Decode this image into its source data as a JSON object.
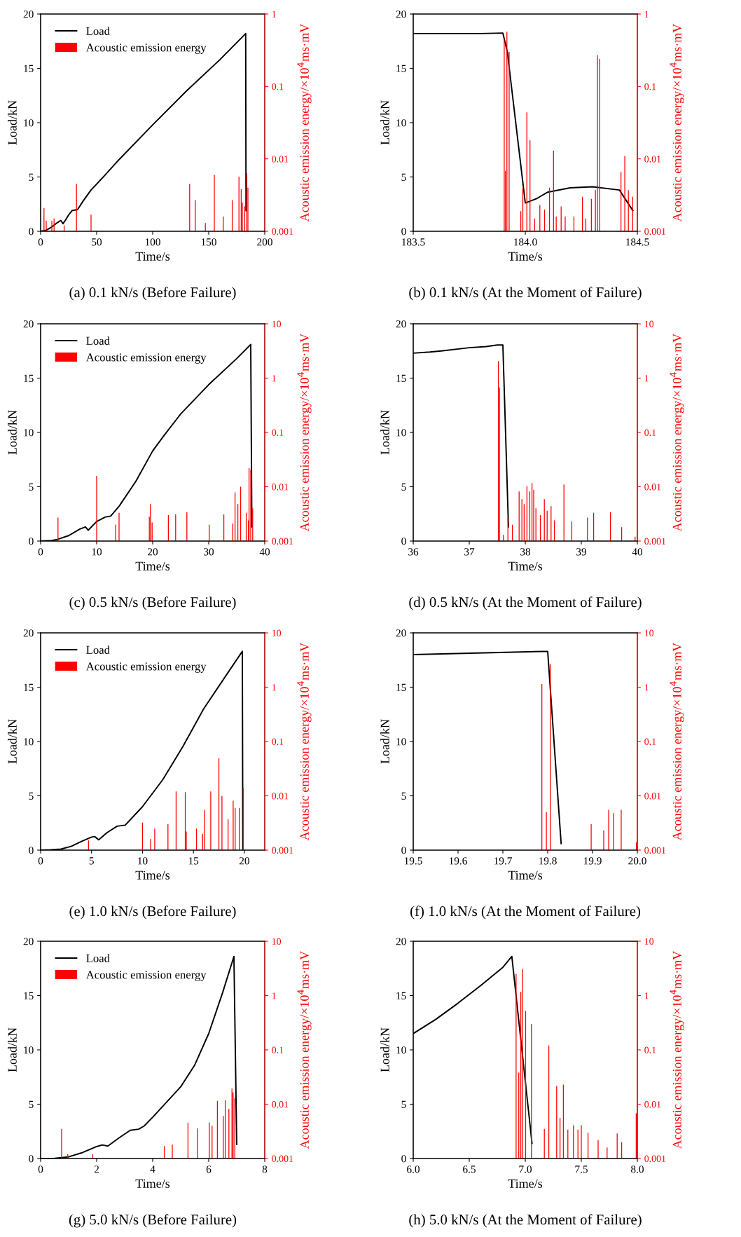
{
  "chart_data": [
    {
      "type": "line",
      "title": "(a) 0.1 kN/s (Before Failure)",
      "xlabel": "Time/s",
      "ylabel": "Load/kN",
      "y2label": "Acoustic emission energy/×10$^{4}$ms·mV",
      "legend": "top left",
      "log": "y2",
      "xlim": [
        0,
        200
      ],
      "xticks": [
        0,
        50,
        100,
        150,
        200
      ],
      "ylim": [
        0,
        20
      ],
      "yticks": [
        0,
        5,
        10,
        15,
        20
      ],
      "y2lim": [
        0.001,
        1
      ],
      "y2ticks": [
        0.001,
        0.01,
        0.1,
        1
      ],
      "series": [
        {
          "name": "Load",
          "color": "#000000",
          "x": [
            0,
            5,
            10,
            15,
            18,
            20,
            22,
            25,
            28,
            33,
            38,
            45,
            55,
            70,
            100,
            130,
            160,
            183,
            183.3
          ],
          "values": [
            0,
            0.1,
            0.4,
            0.8,
            1.0,
            0.7,
            1.0,
            1.5,
            1.9,
            2.0,
            2.8,
            3.8,
            4.9,
            6.6,
            9.8,
            12.9,
            15.8,
            18.2,
            1.9
          ]
        },
        {
          "name": "Acoustic emission energy",
          "type": "bar",
          "axis": "y2",
          "color": "#ff0000",
          "x": [
            3,
            5,
            10,
            12,
            21,
            32,
            45,
            133,
            138,
            147,
            155,
            163,
            171,
            177,
            179,
            180,
            182,
            184,
            185
          ],
          "values": [
            0.0021,
            0.0014,
            0.0014,
            0.0015,
            0.0012,
            0.0045,
            0.0017,
            0.0045,
            0.0027,
            0.0013,
            0.006,
            0.0016,
            0.0027,
            0.0057,
            0.0038,
            0.0025,
            0.0022,
            0.0063,
            0.004
          ]
        }
      ]
    },
    {
      "type": "line",
      "title": "(b) 0.1 kN/s (At the Moment of Failure)",
      "xlabel": "Time/s",
      "ylabel": "Load/kN",
      "y2label": "Acoustic emission energy/×10$^{4}$ms·mV",
      "log": "y2",
      "xlim": [
        183.5,
        184.5
      ],
      "xticks": [
        183.5,
        {
          "value": 184,
          "label": "184.0"
        },
        184.5
      ],
      "ylim": [
        0,
        20
      ],
      "yticks": [
        0,
        5,
        10,
        15,
        20
      ],
      "y2lim": [
        0.001,
        1
      ],
      "y2ticks": [
        0.001,
        0.01,
        0.1,
        1
      ],
      "series": [
        {
          "color": "#000000",
          "x": [
            183.5,
            183.8,
            183.9,
            183.92,
            184.0,
            184.05,
            184.1,
            184.2,
            184.3,
            184.42,
            184.48
          ],
          "values": [
            18.2,
            18.2,
            18.25,
            16.5,
            2.6,
            3.0,
            3.6,
            4.0,
            4.1,
            3.8,
            1.9
          ]
        },
        {
          "type": "bar",
          "axis": "y2",
          "color": "#ff0000",
          "x": [
            183.906,
            183.911,
            183.918,
            183.928,
            183.98,
            183.989,
            184.007,
            184.021,
            184.042,
            184.065,
            184.086,
            184.108,
            184.126,
            184.138,
            184.16,
            184.178,
            184.217,
            184.255,
            184.27,
            184.295,
            184.313,
            184.322,
            184.332,
            184.427,
            184.444,
            184.46,
            184.479
          ],
          "values": [
            0.43,
            0.0068,
            0.57,
            0.3,
            0.0019,
            0.004,
            0.044,
            0.018,
            0.0015,
            0.0023,
            0.002,
            0.004,
            0.013,
            0.0016,
            0.0022,
            0.0016,
            0.0016,
            0.003,
            0.0015,
            0.0028,
            0.0037,
            0.27,
            0.24,
            0.0066,
            0.011,
            0.0037,
            0.003
          ]
        }
      ]
    },
    {
      "type": "line",
      "title": "(c) 0.5 kN/s (Before Failure)",
      "xlabel": "Time/s",
      "ylabel": "Load/kN",
      "y2label": "Acoustic emission energy/×10$^{4}$ms·mV",
      "legend": "top left",
      "log": "y2",
      "xlim": [
        0,
        40
      ],
      "xticks": [
        0,
        10,
        20,
        30,
        40
      ],
      "ylim": [
        0,
        20
      ],
      "yticks": [
        0,
        5,
        10,
        15,
        20
      ],
      "y2lim": [
        0.001,
        10
      ],
      "y2ticks": [
        0.001,
        0.01,
        0.1,
        1,
        10
      ],
      "series": [
        {
          "name": "Load",
          "color": "#000000",
          "x": [
            0,
            2,
            3,
            5,
            7,
            8,
            8.5,
            10,
            11.5,
            12.5,
            14,
            17,
            20,
            22,
            25,
            30,
            35,
            37.5,
            37.7
          ],
          "values": [
            0,
            0.05,
            0.15,
            0.5,
            1.1,
            1.3,
            1.0,
            1.8,
            2.2,
            2.3,
            3.2,
            5.5,
            8.3,
            9.7,
            11.7,
            14.4,
            16.8,
            18.1,
            1.3
          ]
        },
        {
          "name": "Acoustic emission energy",
          "type": "bar",
          "axis": "y2",
          "color": "#ff0000",
          "x": [
            3.1,
            10.0,
            13.4,
            14.0,
            19.4,
            19.6,
            19.9,
            22.8,
            24.1,
            26.1,
            30.1,
            32.7,
            34.3,
            34.7,
            35.2,
            35.7,
            36.7,
            37.1,
            37.2,
            37.5,
            37.85
          ],
          "values": [
            0.0027,
            0.0158,
            0.002,
            0.0033,
            0.0028,
            0.0048,
            0.0022,
            0.003,
            0.0031,
            0.0034,
            0.002,
            0.0031,
            0.0021,
            0.0079,
            0.0048,
            0.01,
            0.0033,
            0.0024,
            0.022,
            0.0205,
            0.004
          ]
        }
      ]
    },
    {
      "type": "line",
      "title": "(d) 0.5 kN/s (At the Moment of Failure)",
      "xlabel": "Time/s",
      "ylabel": "Load/kN",
      "y2label": "Acoustic emission energy/×10$^{4}$ms·mV",
      "log": "y2",
      "xlim": [
        36,
        40
      ],
      "xticks": [
        36,
        37,
        38,
        39,
        40
      ],
      "ylim": [
        0,
        20
      ],
      "yticks": [
        0,
        5,
        10,
        15,
        20
      ],
      "y2lim": [
        0.001,
        10
      ],
      "y2ticks": [
        0.001,
        0.01,
        0.1,
        1,
        10
      ],
      "series": [
        {
          "color": "#000000",
          "x": [
            36,
            36.3,
            36.5,
            37,
            37.3,
            37.5,
            37.6,
            37.7
          ],
          "values": [
            17.3,
            17.4,
            17.5,
            17.8,
            17.9,
            18.05,
            18.05,
            1.3
          ]
        },
        {
          "type": "bar",
          "axis": "y2",
          "color": "#ff0000",
          "x": [
            37.52,
            37.54,
            37.61,
            37.69,
            37.77,
            37.89,
            37.94,
            37.98,
            38.03,
            38.08,
            38.12,
            38.15,
            38.19,
            38.27,
            38.34,
            38.39,
            38.46,
            38.52,
            38.69,
            38.83,
            39.11,
            39.22,
            39.52,
            39.72,
            39.96
          ],
          "values": [
            2.06,
            0.67,
            0.0013,
            0.0026,
            0.002,
            0.0082,
            0.0059,
            0.0048,
            0.0102,
            0.0082,
            0.0118,
            0.0088,
            0.004,
            0.003,
            0.0059,
            0.0036,
            0.0044,
            0.0024,
            0.011,
            0.0023,
            0.0027,
            0.0033,
            0.0034,
            0.0018,
            0.0012
          ]
        }
      ]
    },
    {
      "type": "line",
      "title": "(e) 1.0 kN/s (Before Failure)",
      "xlabel": "Time/s",
      "ylabel": "Load/kN",
      "y2label": "Acoustic emission energy/×10$^{4}$ms·mV",
      "legend": "top left",
      "log": "y2",
      "xlim": [
        0,
        22
      ],
      "xticks": [
        0,
        5,
        10,
        15,
        20
      ],
      "ylim": [
        0,
        20
      ],
      "yticks": [
        0,
        5,
        10,
        15,
        20
      ],
      "y2lim": [
        0.001,
        10
      ],
      "y2ticks": [
        0.001,
        0.01,
        0.1,
        1,
        10
      ],
      "series": [
        {
          "name": "Load",
          "color": "#000000",
          "x": [
            0,
            1,
            2,
            3,
            4,
            5,
            5.3,
            5.7,
            6.5,
            7.5,
            8.3,
            9,
            10,
            12,
            14,
            16,
            18,
            19.8,
            19.85
          ],
          "values": [
            0,
            0.03,
            0.1,
            0.35,
            0.8,
            1.2,
            1.25,
            0.95,
            1.6,
            2.2,
            2.3,
            3.0,
            4.0,
            6.5,
            9.6,
            13.0,
            15.8,
            18.3,
            0.1
          ]
        },
        {
          "name": "Acoustic emission energy",
          "type": "bar",
          "axis": "y2",
          "color": "#ff0000",
          "x": [
            4.7,
            10.0,
            10.8,
            11.2,
            12.5,
            13.3,
            14.2,
            14.3,
            15.3,
            15.9,
            16.1,
            16.7,
            17.5,
            17.8,
            18.4,
            18.9,
            19.1,
            19.5,
            19.9
          ],
          "values": [
            0.0015,
            0.0032,
            0.0016,
            0.0025,
            0.003,
            0.012,
            0.0117,
            0.0022,
            0.0025,
            0.002,
            0.0055,
            0.012,
            0.049,
            0.0099,
            0.0037,
            0.0081,
            0.006,
            0.006,
            0.014
          ]
        }
      ]
    },
    {
      "type": "line",
      "title": "(f) 1.0 kN/s (At the Moment of Failure)",
      "xlabel": "Time/s",
      "ylabel": "Load/kN",
      "y2label": "Acoustic emission energy/×10$^{4}$ms·mV",
      "log": "y2",
      "xlim": [
        19.5,
        20.0
      ],
      "xticks": [
        19.5,
        19.6,
        19.7,
        19.8,
        19.9,
        {
          "value": 20,
          "label": "20.0"
        }
      ],
      "ylim": [
        0,
        20
      ],
      "yticks": [
        0,
        5,
        10,
        15,
        20
      ],
      "y2lim": [
        0.001,
        10
      ],
      "y2ticks": [
        0.001,
        0.01,
        0.1,
        1,
        10
      ],
      "series": [
        {
          "color": "#000000",
          "x": [
            19.5,
            19.8,
            19.83
          ],
          "values": [
            18.0,
            18.3,
            0.6
          ]
        },
        {
          "type": "bar",
          "axis": "y2",
          "color": "#ff0000",
          "x": [
            19.787,
            19.797,
            19.806,
            19.897,
            19.925,
            19.936,
            19.947,
            19.964,
            19.998
          ],
          "values": [
            1.14,
            0.005,
            2.65,
            0.003,
            0.0023,
            0.0055,
            0.0048,
            0.0055,
            0.0014
          ]
        }
      ]
    },
    {
      "type": "line",
      "title": "(g) 5.0 kN/s (Before Failure)",
      "xlabel": "Time/s",
      "ylabel": "Load/kN",
      "y2label": "Acoustic emission energy/×10$^{4}$ms·mV",
      "legend": "top left",
      "log": "y2",
      "xlim": [
        0,
        8
      ],
      "xticks": [
        0,
        2,
        4,
        6,
        8
      ],
      "ylim": [
        0,
        20
      ],
      "yticks": [
        0,
        5,
        10,
        15,
        20
      ],
      "y2lim": [
        0.001,
        10
      ],
      "y2ticks": [
        0.001,
        0.01,
        0.1,
        1,
        10
      ],
      "series": [
        {
          "name": "Load",
          "color": "#000000",
          "x": [
            0,
            0.5,
            1,
            1.5,
            2,
            2.2,
            2.4,
            2.8,
            3.2,
            3.5,
            3.7,
            4,
            4.5,
            5,
            5.5,
            6,
            6.5,
            6.9,
            7
          ],
          "values": [
            0,
            0.02,
            0.15,
            0.55,
            1.1,
            1.25,
            1.15,
            1.9,
            2.6,
            2.7,
            3.0,
            3.8,
            5.2,
            6.6,
            8.6,
            11.5,
            15.3,
            18.6,
            1.3
          ]
        },
        {
          "name": "Acoustic emission energy",
          "type": "bar",
          "axis": "y2",
          "color": "#ff0000",
          "x": [
            0.75,
            0.97,
            1.86,
            4.42,
            4.7,
            5.26,
            5.6,
            6.02,
            6.12,
            6.31,
            6.52,
            6.59,
            6.72,
            6.83,
            6.87,
            6.93
          ],
          "values": [
            0.0035,
            0.0012,
            0.0012,
            0.0017,
            0.0018,
            0.0046,
            0.0036,
            0.0046,
            0.004,
            0.0115,
            0.0061,
            0.0118,
            0.0082,
            0.0193,
            0.0165,
            0.0128
          ]
        }
      ]
    },
    {
      "type": "line",
      "title": "(h) 5.0 kN/s (At the Moment of Failure)",
      "xlabel": "Time/s",
      "ylabel": "Load/kN",
      "y2label": "Acoustic emission energy/×10$^{4}$ms·mV",
      "log": "y2",
      "xlim": [
        6,
        8
      ],
      "xticks": [
        {
          "value": 6,
          "label": "6.0"
        },
        6.5,
        {
          "value": 7,
          "label": "7.0"
        },
        7.5,
        {
          "value": 8,
          "label": "8.0"
        }
      ],
      "ylim": [
        0,
        20
      ],
      "yticks": [
        0,
        5,
        10,
        15,
        20
      ],
      "y2lim": [
        0.001,
        10
      ],
      "y2ticks": [
        0.001,
        0.01,
        0.1,
        1,
        10
      ],
      "series": [
        {
          "color": "#000000",
          "x": [
            6,
            6.2,
            6.4,
            6.6,
            6.8,
            6.88,
            7.06
          ],
          "values": [
            11.5,
            12.8,
            14.3,
            15.9,
            17.6,
            18.6,
            1.4
          ]
        },
        {
          "type": "bar",
          "axis": "y2",
          "color": "#ff0000",
          "x": [
            6.918,
            6.942,
            6.96,
            6.976,
            7.003,
            7.055,
            7.17,
            7.21,
            7.28,
            7.31,
            7.34,
            7.38,
            7.43,
            7.47,
            7.5,
            7.56,
            7.65,
            7.73,
            7.82,
            7.86,
            7.99
          ],
          "values": [
            2.5,
            0.038,
            1.17,
            3.1,
            0.52,
            0.3,
            0.0035,
            0.12,
            0.0216,
            0.0056,
            0.0229,
            0.0034,
            0.0041,
            0.0034,
            0.0041,
            0.003,
            0.0022,
            0.0016,
            0.0029,
            0.002,
            0.0068
          ]
        }
      ]
    }
  ]
}
